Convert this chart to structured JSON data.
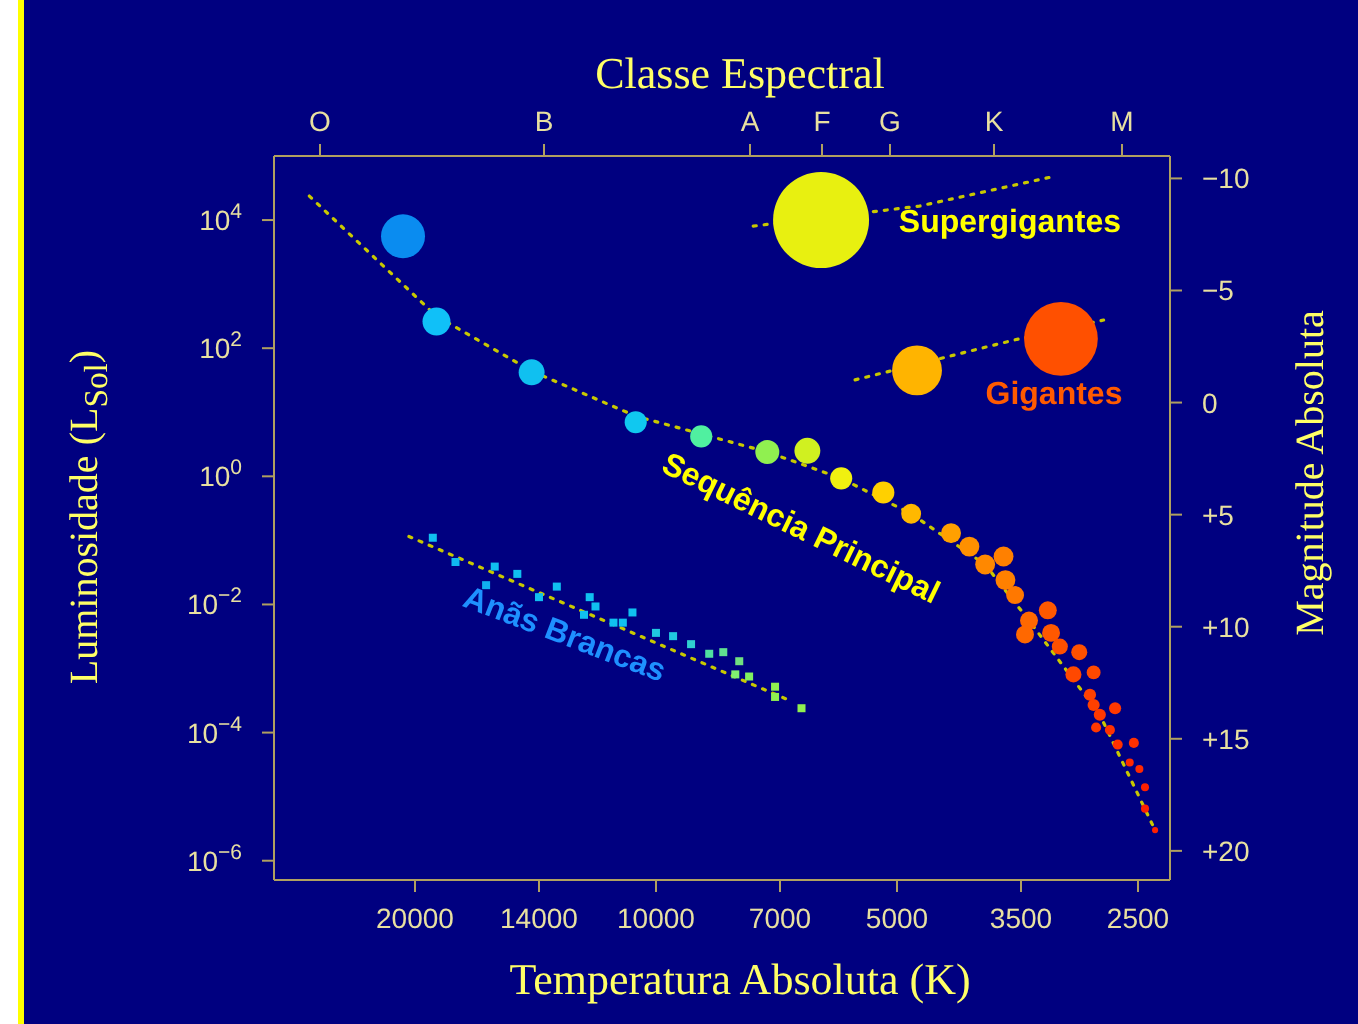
{
  "chart_data": {
    "type": "bubble",
    "xlabel": "Temperatura Absoluta (K)",
    "x2label": "Classe Espectral",
    "ylabel": "Luminosidade (L$_{Sol}$)",
    "y2label": "Magnitude Absoluta",
    "log": "xy",
    "xlim": [
      30000,
      2280
    ],
    "xticks": [
      20000,
      14000,
      10000,
      7000,
      5000,
      3500,
      2500
    ],
    "ylim": [
      5e-07,
      100000
    ],
    "yticks": [
      {
        "value": 10000,
        "label": "10$^{4}$"
      },
      {
        "value": 100,
        "label": "10$^{2}$"
      },
      {
        "value": 1,
        "label": "10$^{0}$"
      },
      {
        "value": 0.01,
        "label": "10$^{−2}$"
      },
      {
        "value": 0.0001,
        "label": "10$^{−4}$"
      },
      {
        "value": 1e-06,
        "label": "10$^{−6}$"
      }
    ],
    "y2lim": [
      21.3,
      -11
    ],
    "y2ticks": [
      {
        "value": -10,
        "label": "−10"
      },
      {
        "value": -5,
        "label": "−5"
      },
      0,
      {
        "value": 5,
        "label": "+5"
      },
      {
        "value": 10,
        "label": "+10"
      },
      {
        "value": 15,
        "label": "+15"
      },
      {
        "value": 20,
        "label": "+20"
      }
    ],
    "series": [
      {
        "type": "line",
        "line_style": "dotted",
        "color": "#c8c800",
        "x": [
          27100,
          18800,
          14300,
          10600,
          7260,
          5870,
          4800,
          3880,
          3420,
          2790,
          2380
        ],
        "values": [
          23700,
          316,
          44,
          8.7,
          2.4,
          0.93,
          0.26,
          0.042,
          0.0056,
          0.00019,
          3e-06
        ]
      },
      {
        "type": "line",
        "line_style": "dotted",
        "color": "#c8c800",
        "x": [
          7560,
          4690,
          3170
        ],
        "values": [
          8050,
          16500,
          48600
        ]
      },
      {
        "type": "line",
        "line_style": "dotted",
        "color": "#c8c800",
        "x": [
          5640,
          3580,
          2760
        ],
        "values": [
          32,
          133,
          275
        ]
      },
      {
        "type": "line",
        "line_style": "dotted",
        "color": "#c8c800",
        "x": [
          20350,
          6820
        ],
        "values": [
          0.115,
          0.00032
        ]
      },
      {
        "x": [
          20700,
          18800,
          14300,
          10600,
          8780,
          7260,
          6470,
          5870,
          5200,
          4800,
          4280,
          4060,
          3880,
          3680,
          3660,
          3560,
          3420,
          3460,
          3240,
          3210,
          3130,
          2960,
          3010,
          2840,
          2870,
          2840,
          2790,
          2670,
          2820,
          2710,
          2650,
          2530,
          2560,
          2490,
          2450,
          2450,
          2380
        ],
        "values": [
          5600,
          260,
          42,
          7.0,
          4.2,
          2.4,
          2.5,
          0.93,
          0.56,
          0.26,
          0.13,
          0.08,
          0.042,
          0.056,
          0.024,
          0.014,
          0.0056,
          0.0034,
          0.0081,
          0.0036,
          0.0022,
          0.0018,
          0.00081,
          0.00087,
          0.00039,
          0.00027,
          0.00019,
          0.00024,
          0.00012,
          0.00011,
          6.5e-05,
          6.9e-05,
          3.4e-05,
          2.7e-05,
          1.4e-05,
          6.5e-06,
          3e-06
        ],
        "sizes": [
          0.21,
          0.085,
          0.073,
          0.053,
          0.053,
          0.0625,
          0.073,
          0.053,
          0.053,
          0.043,
          0.043,
          0.043,
          0.043,
          0.043,
          0.043,
          0.035,
          0.035,
          0.035,
          0.035,
          0.035,
          0.028,
          0.028,
          0.028,
          0.021,
          0.016,
          0.016,
          0.016,
          0.016,
          0.011,
          0.011,
          0.011,
          0.011,
          0.007,
          0.007,
          0.007,
          0.007,
          0.004
        ],
        "colors": [
          "#0a8cf0",
          "#10c0f8",
          "#10c0f0",
          "#10c8f0",
          "#50f0a0",
          "#90f050",
          "#d0f020",
          "#f0f010",
          "#ffd000",
          "#ffb800",
          "#ffa000",
          "#ff9000",
          "#ff8800",
          "#ff8000",
          "#ff8000",
          "#ff7800",
          "#ff6800",
          "#ff6800",
          "#ff5800",
          "#ff5800",
          "#ff5000",
          "#ff5000",
          "#ff4800",
          "#ff4800",
          "#ff4000",
          "#ff4000",
          "#ff3800",
          "#ff3800",
          "#ff3800",
          "#ff3000",
          "#ff3000",
          "#ff3000",
          "#ff2800",
          "#ff2800",
          "#ff2000",
          "#ff2000",
          "#ff2000"
        ]
      },
      {
        "type": "bubble",
        "x": [
          6220
        ],
        "values": [
          10000
        ],
        "sizes": [
          1
        ],
        "colors": [
          "#e8f010"
        ]
      },
      {
        "type": "bubble",
        "x": [
          4720,
          3120
        ],
        "values": [
          45,
          140
        ],
        "sizes": [
          0.27,
          0.59
        ],
        "colors": [
          "#ffb400",
          "#ff5000"
        ]
      },
      {
        "type": "scatter",
        "marker": "square",
        "x": [
          19000,
          17800,
          15900,
          14900,
          16300,
          14000,
          13300,
          12100,
          12300,
          11900,
          10700,
          11300,
          11000,
          10000,
          9520,
          9040,
          8580,
          8240,
          7870,
          7960,
          7650,
          7100,
          7100,
          6580
        ],
        "values": [
          0.11,
          0.046,
          0.039,
          0.03,
          0.02,
          0.013,
          0.019,
          0.013,
          0.0069,
          0.0093,
          0.0075,
          0.0052,
          0.0052,
          0.0036,
          0.0032,
          0.0024,
          0.0017,
          0.0018,
          0.0013,
          0.00081,
          0.00075,
          0.00052,
          0.00036,
          0.00024
        ],
        "colors": [
          "#10c0f0",
          "#10b8f0",
          "#10c0f0",
          "#10c0f0",
          "#10b0f0",
          "#10c0f0",
          "#10c0f0",
          "#10c0f0",
          "#10c0f0",
          "#10c0f0",
          "#10c0f0",
          "#10c0f0",
          "#10c0f0",
          "#20c8e0",
          "#20c8e0",
          "#30d0d0",
          "#50e0a0",
          "#60e090",
          "#70e080",
          "#80f070",
          "#80f060",
          "#90f050",
          "#90f050",
          "#90f050"
        ]
      }
    ],
    "annotations": [
      "O",
      "B",
      "A",
      "F",
      "G",
      "K",
      "M",
      "Supergigantes",
      "Gigantes",
      "Sequência Principal",
      "Anãs Brancas"
    ]
  }
}
